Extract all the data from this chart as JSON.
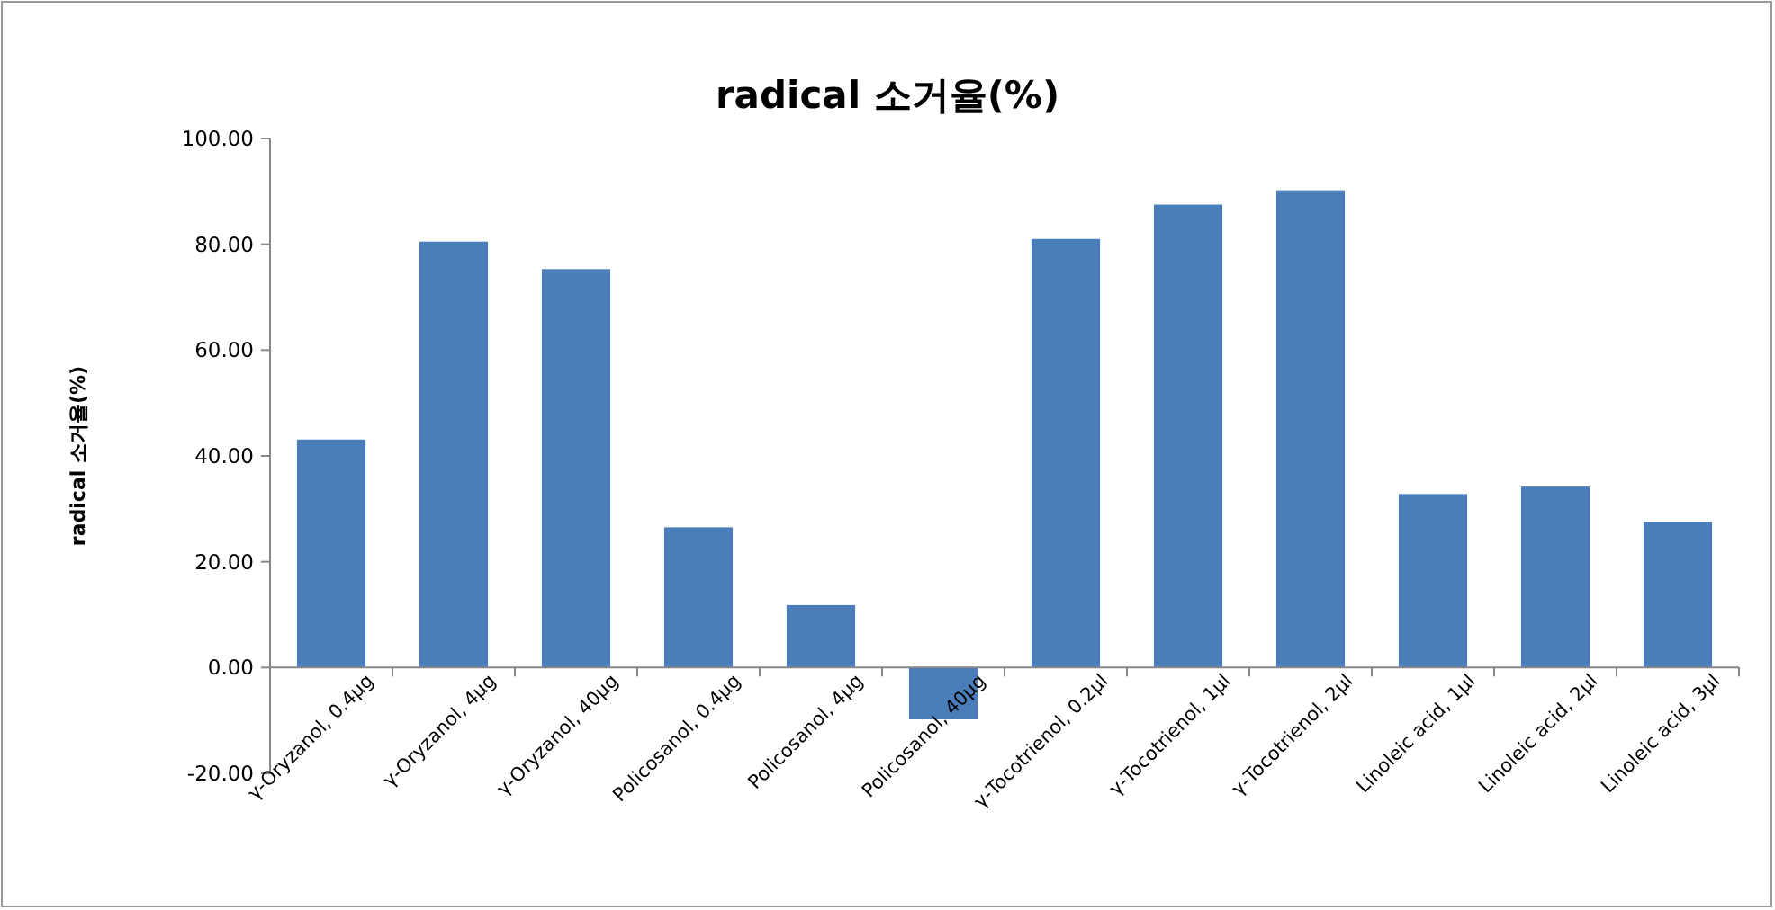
{
  "chart_data": {
    "type": "bar",
    "title": "radical 소거율(%)",
    "ylabel": "radical 소거율(%)",
    "categories": [
      "γ-Oryzanol, 0.4μg",
      "γ-Oryzanol, 4μg",
      "γ-Oryzanol, 40μg",
      "Policosanol, 0.4μg",
      "Policosanol, 4μg",
      "Policosanol, 40μg",
      "γ-Tocotrienol, 0.2μl",
      "γ-Tocotrienol, 1μl",
      "γ-Tocotrienol, 2μl",
      "Linoleic acid, 1μl",
      "Linoleic acid, 2μl",
      "Linoleic acid, 3μl"
    ],
    "values": [
      43.1,
      80.5,
      75.3,
      26.5,
      11.8,
      -9.8,
      81.0,
      87.5,
      90.2,
      32.8,
      34.2,
      27.5
    ],
    "color": "#4a7ebb",
    "ylim": [
      -20,
      100
    ],
    "yticks": [
      {
        "value": -20,
        "label": "-20.00"
      },
      {
        "value": 0,
        "label": "0.00"
      },
      {
        "value": 20,
        "label": "20.00"
      },
      {
        "value": 40,
        "label": "40.00"
      },
      {
        "value": 60,
        "label": "60.00"
      },
      {
        "value": 80,
        "label": "80.00"
      },
      {
        "value": 100,
        "label": "100.00"
      }
    ]
  }
}
